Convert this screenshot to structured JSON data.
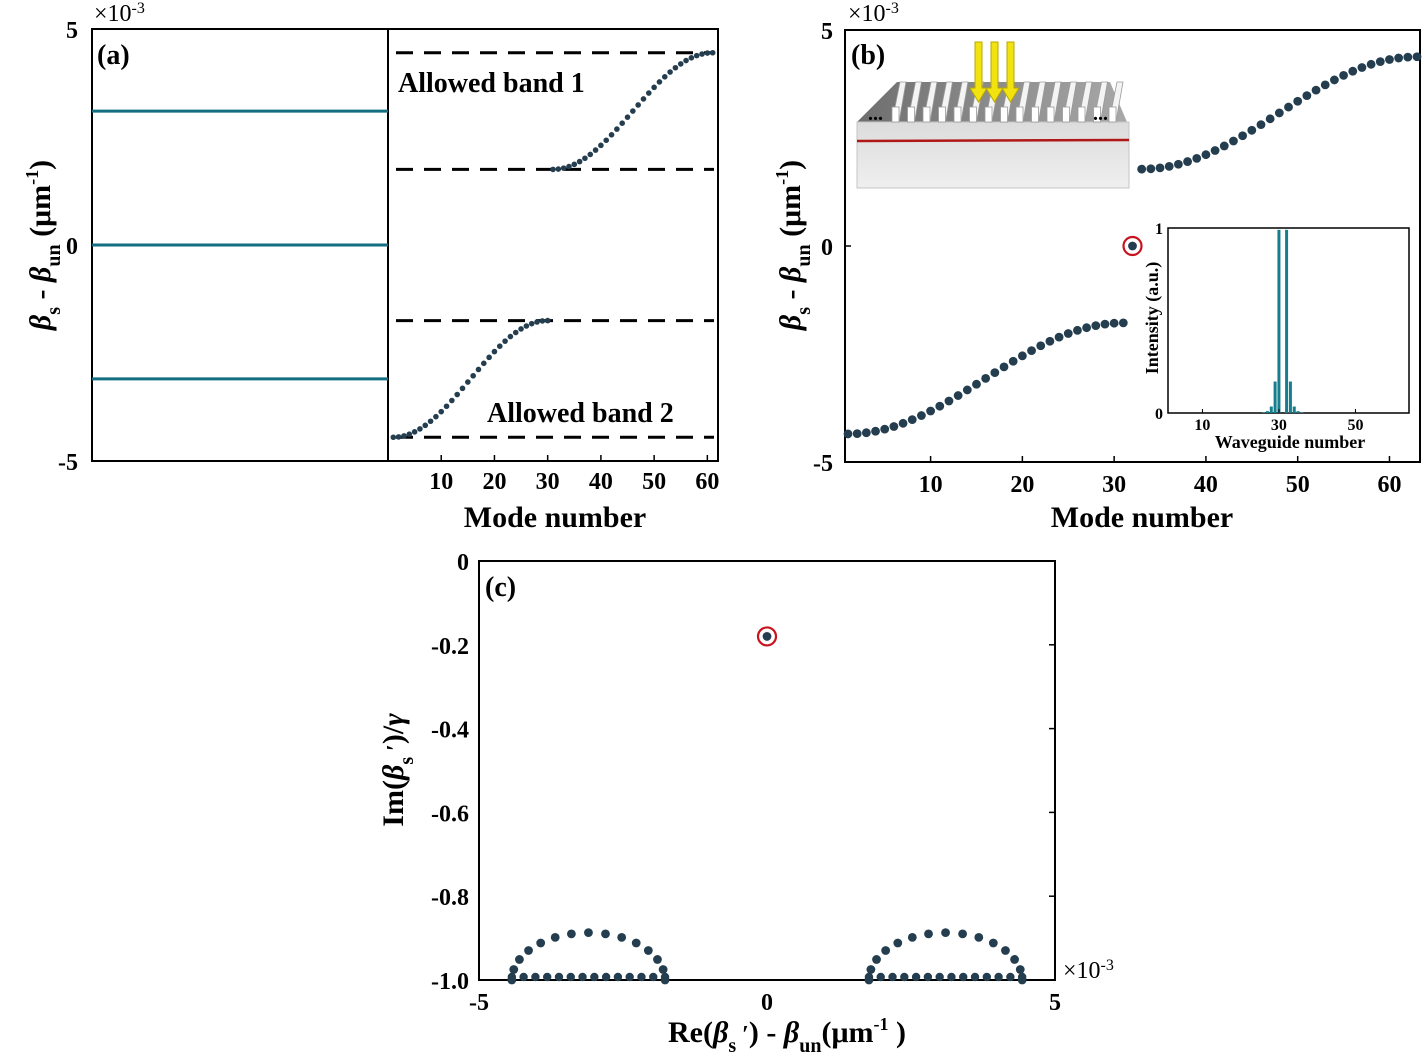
{
  "colors": {
    "dot": "#243e4f",
    "line": "#126e80",
    "circle": "#c8141e",
    "bar": "#167e8c",
    "arrow": "#f2e210",
    "redline": "#b01818"
  },
  "panel_a": {
    "label": "(a)",
    "exponent": "×10",
    "exponent_power": "-3",
    "band1": "Allowed band 1",
    "band2": "Allowed band 2"
  },
  "panel_b": {
    "label": "(b)",
    "exponent": "×10",
    "exponent_power": "-3",
    "inset_dots": "..."
  },
  "panel_c": {
    "label": "(c)",
    "exponent": "×10",
    "exponent_power": "-3"
  },
  "chart_data": [
    {
      "id": "a-left",
      "type": "line",
      "lines_y": [
        0.0031,
        0.0,
        -0.0031
      ],
      "ylim": [
        -0.005,
        0.005
      ],
      "yticks": [
        "5",
        "0",
        "-5"
      ],
      "yticks_values": [
        0.005,
        0.0,
        -0.005
      ],
      "ylabel": {
        "beta": "β",
        "sub_s": "s",
        "minus": " - ",
        "sub_un": "un",
        "unit": " (μm",
        "pow": "-1",
        "close": ")"
      }
    },
    {
      "id": "a-right",
      "type": "scatter",
      "n_modes": 61,
      "band2": {
        "start_mode": 1,
        "end_mode": 30,
        "min": -0.00445,
        "max": -0.00175
      },
      "band1": {
        "start_mode": 31,
        "end_mode": 61,
        "min": 0.00175,
        "max": 0.00445
      },
      "dashed_levels": [
        0.00445,
        0.00175,
        -0.00175,
        -0.00445
      ],
      "xlim": [
        0,
        62
      ],
      "ylim": [
        -0.005,
        0.005
      ],
      "xticks": [
        "10",
        "20",
        "30",
        "40",
        "50",
        "60"
      ],
      "xticks_values": [
        10,
        20,
        30,
        40,
        50,
        60
      ],
      "xlabel": "Mode number"
    },
    {
      "id": "b",
      "type": "scatter",
      "n_modes": 63,
      "band2": {
        "start_mode": 1,
        "end_mode": 31,
        "min": -0.00435,
        "max": -0.00178
      },
      "band1": {
        "start_mode": 33,
        "end_mode": 63,
        "min": 0.00178,
        "max": 0.00438
      },
      "edge_mode": {
        "x": 32,
        "y": 0.0
      },
      "xlim": [
        1,
        63
      ],
      "ylim": [
        -0.005,
        0.005
      ],
      "xticks": [
        "10",
        "20",
        "30",
        "40",
        "50",
        "60"
      ],
      "xticks_values": [
        10,
        20,
        30,
        40,
        50,
        60
      ],
      "yticks": [
        "5",
        "0",
        "-5"
      ],
      "yticks_values": [
        0.005,
        0.0,
        -0.005
      ],
      "xlabel": "Mode number",
      "ylabel": {
        "beta": "β",
        "sub_s": "s",
        "minus": " - ",
        "sub_un": "un",
        "unit": " (μm",
        "pow": "-1",
        "close": ")"
      }
    },
    {
      "id": "b-inset",
      "type": "bar",
      "x": [
        26,
        27,
        28,
        29,
        30,
        31,
        32,
        33,
        34,
        35,
        36
      ],
      "values": [
        0.003,
        0.01,
        0.035,
        0.17,
        0.99,
        0.0,
        0.99,
        0.17,
        0.035,
        0.01,
        0.003
      ],
      "xlim": [
        1,
        64
      ],
      "ylim": [
        0,
        1
      ],
      "xticks": [
        "10",
        "30",
        "50"
      ],
      "xticks_values": [
        10,
        30,
        50
      ],
      "yticks": [
        "0",
        "1"
      ],
      "yticks_values": [
        0,
        1
      ],
      "xlabel": "Waveguide number",
      "ylabel": "Intensity (a.u.)"
    },
    {
      "id": "c",
      "type": "scatter",
      "groups": [
        {
          "center": -0.0031,
          "half_width": 0.00133,
          "top": -0.887,
          "n_arc": 15,
          "n_flat": 14
        },
        {
          "center": 0.0031,
          "half_width": 0.00133,
          "top": -0.887,
          "n_arc": 15,
          "n_flat": 14
        }
      ],
      "edge_mode": {
        "x": 0.0,
        "y": -0.18
      },
      "xlim": [
        -0.005,
        0.005
      ],
      "ylim": [
        -1.0,
        0.0
      ],
      "xticks": [
        "-5",
        "0",
        "5"
      ],
      "xticks_values": [
        -0.005,
        0.0,
        0.005
      ],
      "yticks": [
        "0",
        "-0.2",
        "-0.4",
        "-0.6",
        "-0.8",
        "-1.0"
      ],
      "yticks_values": [
        0.0,
        -0.2,
        -0.4,
        -0.6,
        -0.8,
        -1.0
      ],
      "xlabel": {
        "pre": "Re(",
        "beta": "β",
        "sub_s": "s",
        "prime": " ′",
        "mid": ") - ",
        "beta2": "β",
        "sub_un": "un",
        "unit": "(μm",
        "pow": "-1",
        "close": " )"
      },
      "ylabel": {
        "pre": "Im(",
        "beta": "β",
        "sub_s": "s",
        "prime": " ′",
        "post": ")/",
        "gamma": "γ"
      }
    }
  ]
}
